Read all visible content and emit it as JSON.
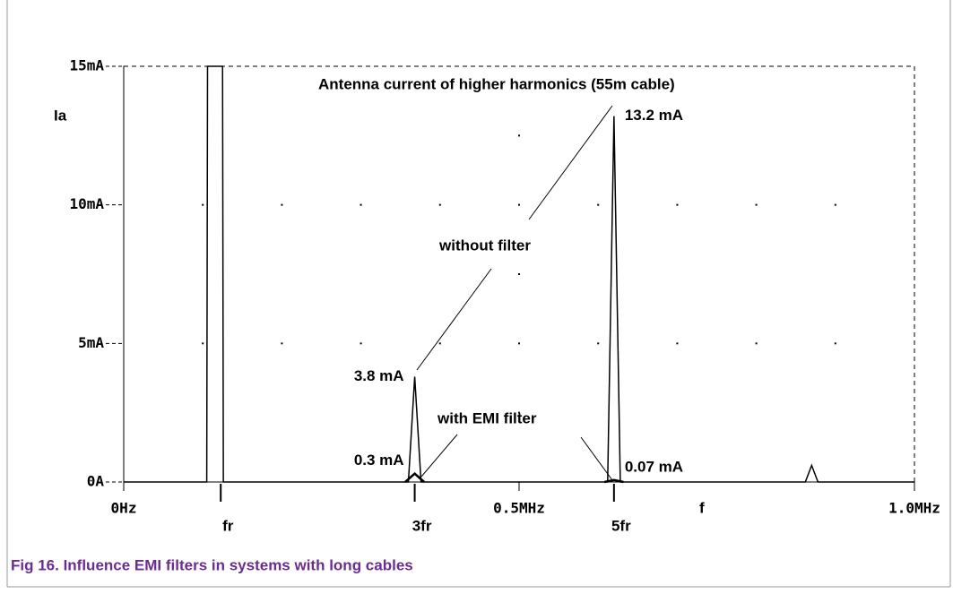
{
  "chart_data": {
    "type": "line",
    "title": "Antenna current of higher harmonics (55m cable)",
    "caption": "Fig 16.   Influence EMI filters in systems with long cables",
    "xlabel": "f",
    "ylabel": "Ia",
    "xlim": [
      0,
      1.0
    ],
    "ylim": [
      0,
      15
    ],
    "xticks": [
      {
        "value": 0,
        "label": "0Hz"
      },
      {
        "value": 0.5,
        "label": "0.5MHz"
      },
      {
        "value": 1.0,
        "label": "1.0MHz"
      }
    ],
    "yticks": [
      {
        "value": 0,
        "label": "0A"
      },
      {
        "value": 5,
        "label": "5mA"
      },
      {
        "value": 10,
        "label": "10mA"
      },
      {
        "value": 15,
        "label": "15mA"
      }
    ],
    "xminorticks": [
      0.1,
      0.2,
      0.3,
      0.4,
      0.6,
      0.7,
      0.8,
      0.9
    ],
    "grid": "dotted",
    "harmonics": [
      {
        "value": 0.1227,
        "label": "fr"
      },
      {
        "value": 0.368,
        "label": "3fr"
      },
      {
        "value": 0.62,
        "label": "5fr"
      }
    ],
    "series": [
      {
        "name": "without filter",
        "color": "#000000",
        "x": [
          0,
          0.105,
          0.106,
          0.125,
          0.126,
          0.36,
          0.368,
          0.376,
          0.612,
          0.62,
          0.628,
          0.862,
          0.87,
          0.878,
          1.0
        ],
        "values": [
          0,
          0,
          15,
          15,
          0,
          0,
          3.8,
          0,
          0,
          13.2,
          0,
          0,
          0.6,
          0,
          0
        ],
        "value_labels": [
          null,
          null,
          null,
          null,
          null,
          null,
          "3.8 mA",
          null,
          null,
          "13.2 mA",
          null,
          null,
          null,
          null,
          null
        ]
      },
      {
        "name": "with EMI filter",
        "color": "#000000",
        "x": [
          0.356,
          0.368,
          0.38,
          0.5,
          0.608,
          0.62,
          0.632
        ],
        "values": [
          0,
          0.3,
          0,
          null,
          0,
          0.07,
          0
        ],
        "value_labels": [
          null,
          "0.3 mA",
          null,
          null,
          null,
          "0.07 mA",
          null
        ]
      }
    ]
  }
}
